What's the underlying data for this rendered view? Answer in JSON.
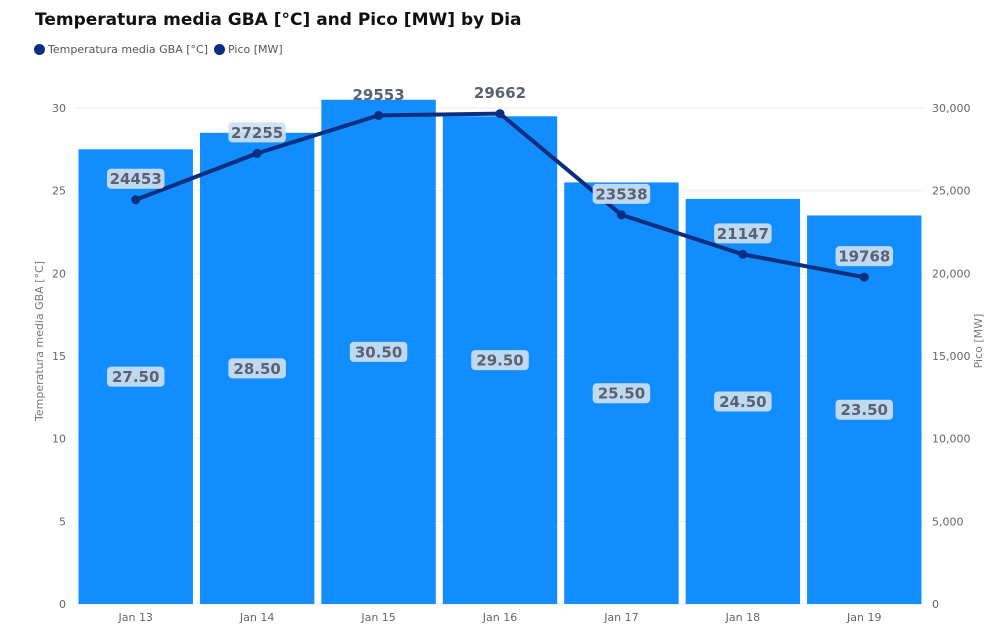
{
  "title": "Temperatura media GBA [°C] and Pico [MW] by Dia",
  "legend": [
    {
      "label": "Temperatura media GBA [°C]",
      "color": "#0d2e7e"
    },
    {
      "label": "Pico [MW]",
      "color": "#0d2e7e"
    }
  ],
  "chart_data": {
    "type": "bar+line",
    "title": "Temperatura media GBA [°C] and Pico [MW] by Dia",
    "categories": [
      "Jan 13",
      "Jan 14",
      "Jan 15",
      "Jan 16",
      "Jan 17",
      "Jan 18",
      "Jan 19"
    ],
    "series": [
      {
        "name": "Temperatura media GBA [°C]",
        "type": "bar",
        "axis": "left",
        "color": "#118dff",
        "values": [
          27.5,
          28.5,
          30.5,
          29.5,
          25.5,
          24.5,
          23.5
        ],
        "labels": [
          "27.50",
          "28.50",
          "30.50",
          "29.50",
          "25.50",
          "24.50",
          "23.50"
        ]
      },
      {
        "name": "Pico [MW]",
        "type": "line",
        "axis": "right",
        "color": "#0d2e7e",
        "values": [
          24453,
          27255,
          29553,
          29662,
          23538,
          21147,
          19768
        ],
        "labels": [
          "24453",
          "27255",
          "29553",
          "29662",
          "23538",
          "21147",
          "19768"
        ]
      }
    ],
    "left_axis": {
      "title": "Temperatura media GBA [°C]",
      "min": 0,
      "max": 30,
      "ticks": [
        0,
        5,
        10,
        15,
        20,
        25,
        30
      ],
      "tick_labels": [
        "0",
        "5",
        "10",
        "15",
        "20",
        "25",
        "30"
      ]
    },
    "right_axis": {
      "title": "Pico [MW]",
      "min": 0,
      "max": 30000,
      "ticks": [
        0,
        5000,
        10000,
        15000,
        20000,
        25000,
        30000
      ],
      "tick_labels": [
        "0",
        "5,000",
        "10,000",
        "15,000",
        "20,000",
        "25,000",
        "30,000"
      ]
    },
    "grid": true,
    "legend_position": "top-left"
  }
}
